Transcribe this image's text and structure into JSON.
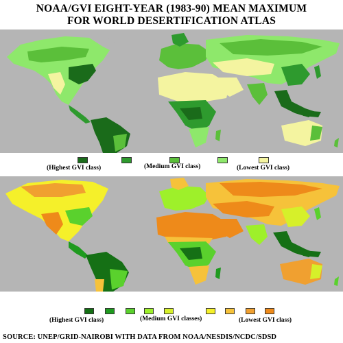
{
  "title": {
    "line1": "NOAA/GVI EIGHT-YEAR (1983-90) MEAN MAXIMUM",
    "line2": "FOR WORLD DESERTIFICATION ATLAS"
  },
  "colors": {
    "ocean": "#b5b5b5",
    "legend_top": [
      "#1a6b1a",
      "#2e9a2e",
      "#5bbf3a",
      "#8ee86b",
      "#f4f4a0"
    ],
    "legend_bottom": [
      "#157015",
      "#1f9a1f",
      "#5ad12d",
      "#9ef02a",
      "#d6f02a",
      "#f5f02a",
      "#f6c23a",
      "#f0a030",
      "#ee8a1a"
    ]
  },
  "legend_top": {
    "highest": "(Highest GVI class)",
    "medium": "(Medium GVI class)",
    "lowest": "(Lowest GVI class)"
  },
  "legend_bottom": {
    "highest": "(Highest GVI class)",
    "medium": "(Medium GVI classes)",
    "lowest": "(Lowest GVI class)"
  },
  "source": "SOURCE: UNEP/GRID-NAIROBI WITH DATA FROM NOAA/NESDIS/NCDC/SDSD"
}
